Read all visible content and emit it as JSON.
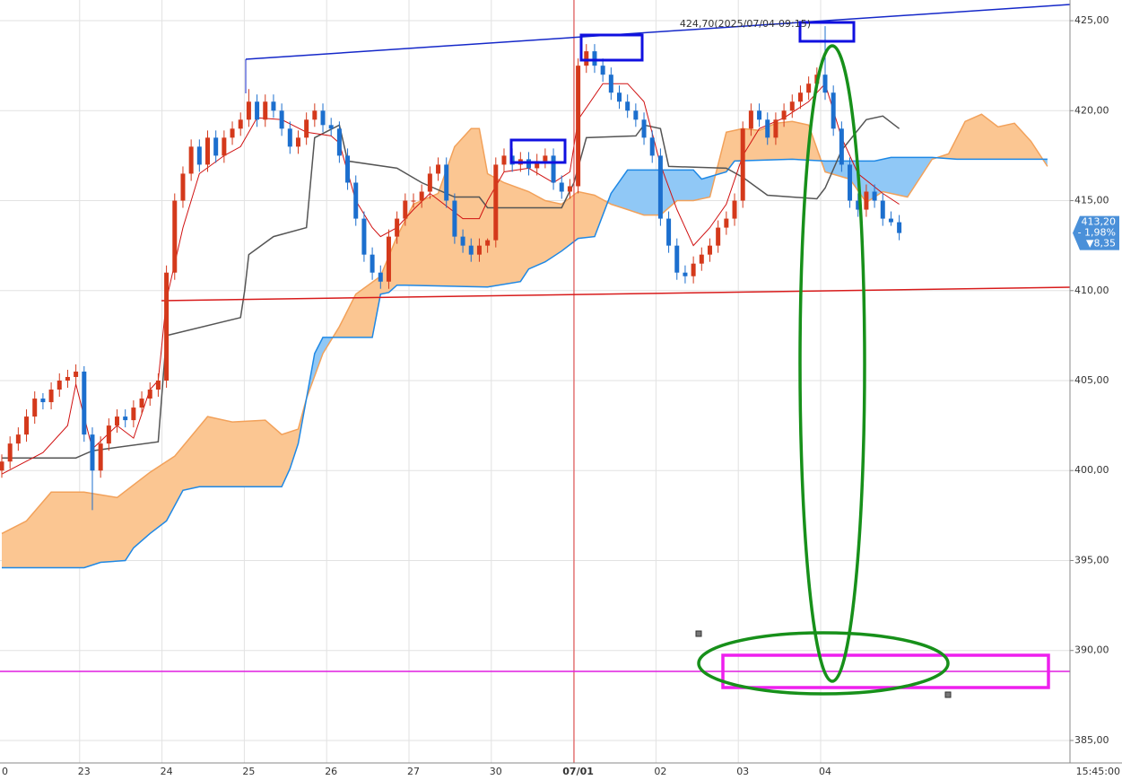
{
  "chart_data": {
    "type": "candlestick",
    "up_color": "#d4391b",
    "down_color": "#1c6fce",
    "categories": [
      "0",
      null,
      null,
      null,
      null,
      null,
      null,
      null,
      null,
      null,
      "23",
      null,
      null,
      null,
      null,
      null,
      null,
      null,
      null,
      null,
      "24",
      null,
      null,
      null,
      null,
      null,
      null,
      null,
      null,
      null,
      "25",
      null,
      null,
      null,
      null,
      null,
      null,
      null,
      null,
      null,
      "26",
      null,
      null,
      null,
      null,
      null,
      null,
      null,
      null,
      null,
      "27",
      null,
      null,
      null,
      null,
      null,
      null,
      null,
      null,
      null,
      "30",
      null,
      null,
      null,
      null,
      null,
      null,
      null,
      null,
      null,
      "07/01",
      null,
      null,
      null,
      null,
      null,
      null,
      null,
      null,
      null,
      "02",
      null,
      null,
      null,
      null,
      null,
      null,
      null,
      null,
      null,
      "03",
      null,
      null,
      null,
      null,
      null,
      null,
      null,
      null,
      null,
      "04",
      null,
      null,
      null,
      null,
      null,
      null,
      null,
      null,
      null
    ],
    "open": [
      400,
      400.5,
      401.5,
      402,
      403,
      404,
      403.8,
      404.5,
      405,
      405.2,
      405.5,
      402,
      400,
      401.5,
      402.5,
      403,
      402.8,
      403.5,
      404,
      404.5,
      405,
      411,
      415,
      416.5,
      418,
      417,
      418.5,
      417.5,
      418.5,
      419,
      419.5,
      420.5,
      419.5,
      420.5,
      420,
      419,
      418,
      418.5,
      419.5,
      420,
      419.2,
      419,
      417.5,
      416,
      414,
      412,
      411,
      410.5,
      413,
      414,
      415,
      415,
      415.5,
      416.5,
      417,
      415,
      413,
      412.5,
      412,
      412.5,
      412.8,
      417,
      417.5,
      417,
      417.3,
      416.8,
      417.2,
      417.5,
      416,
      415.5,
      415.8,
      422.5,
      423.3,
      422.5,
      422,
      421,
      420.5,
      420,
      419.5,
      418.5,
      417.5,
      414,
      412.5,
      411,
      410.8,
      411.5,
      412,
      412.5,
      413.5,
      414,
      415,
      419,
      420,
      419.5,
      418.5,
      419.5,
      420,
      420.5,
      421,
      421.5,
      422,
      421,
      419,
      417,
      415,
      414.5,
      415.5,
      415,
      414,
      413.8
    ],
    "high": [
      400.9,
      401.9,
      402.4,
      403.4,
      404.4,
      404.3,
      404.9,
      405.4,
      405.6,
      405.9,
      405.8,
      402.4,
      401.9,
      402.9,
      403.4,
      403.4,
      403.9,
      404.4,
      404.9,
      405.4,
      411.4,
      415.4,
      416.9,
      418.4,
      418.4,
      418.9,
      418.9,
      418.9,
      419.4,
      419.9,
      421.2,
      420.9,
      420.9,
      420.9,
      420.4,
      419.4,
      418.9,
      419.9,
      420.4,
      420.4,
      419.6,
      419.4,
      417.9,
      416.4,
      414.4,
      412.4,
      411.4,
      413.4,
      414.4,
      415.4,
      415.4,
      415.9,
      416.9,
      417.4,
      417.4,
      415.4,
      413.4,
      412.9,
      412.9,
      412.9,
      417.4,
      417.9,
      417.9,
      417.7,
      417.7,
      417.6,
      417.9,
      417.9,
      416.4,
      416.2,
      422.9,
      423.7,
      423.7,
      422.9,
      422.4,
      421.4,
      420.9,
      420.4,
      419.9,
      418.9,
      417.9,
      414.4,
      412.9,
      411.4,
      411.9,
      412.4,
      412.9,
      413.9,
      414.4,
      415.4,
      419.4,
      420.4,
      420.4,
      419.9,
      419.9,
      420.4,
      420.9,
      421.4,
      421.9,
      422.4,
      424.7,
      421.4,
      419.4,
      417.4,
      415.4,
      415.9,
      415.9,
      415.4,
      414.4,
      414.2
    ],
    "low": [
      399.6,
      400.1,
      401.1,
      401.6,
      402.6,
      403.4,
      403.4,
      404.1,
      404.6,
      404.8,
      401.6,
      397.8,
      399.6,
      401.1,
      402.1,
      402.4,
      402.4,
      403.1,
      403.6,
      404.1,
      404.6,
      410.6,
      414.6,
      416.1,
      416.6,
      416.6,
      417.1,
      417.1,
      418.1,
      418.6,
      419.1,
      419.1,
      419.1,
      419.6,
      418.6,
      417.6,
      417.6,
      418.1,
      419.1,
      418.8,
      418.6,
      417.1,
      415.6,
      413.6,
      411.6,
      410.6,
      410.1,
      410.1,
      412.6,
      413.6,
      414.6,
      414.6,
      415.1,
      416.1,
      414.6,
      412.6,
      412.1,
      411.6,
      411.6,
      412.1,
      412.4,
      416.6,
      416.6,
      416.6,
      416.4,
      416.4,
      416.8,
      415.6,
      415.1,
      415.1,
      415.4,
      422.1,
      422.1,
      421.6,
      420.6,
      420.1,
      419.6,
      419.1,
      418.1,
      417.1,
      413.6,
      412.1,
      410.6,
      410.4,
      410.4,
      411.1,
      411.6,
      412.1,
      413.1,
      413.6,
      414.6,
      418.6,
      419.1,
      418.1,
      418.1,
      419.1,
      419.6,
      420.1,
      420.6,
      421.1,
      420.6,
      418.6,
      416.6,
      414.6,
      414.1,
      414.1,
      414.6,
      413.6,
      413.6,
      412.8
    ],
    "close": [
      400.5,
      401.5,
      402,
      403,
      404,
      403.8,
      404.5,
      405,
      405.2,
      405.5,
      402,
      400,
      401.5,
      402.5,
      403,
      402.8,
      403.5,
      404,
      404.5,
      405,
      411,
      415,
      416.5,
      418,
      417,
      418.5,
      417.5,
      418.5,
      419,
      419.5,
      420.5,
      419.5,
      420.5,
      420,
      419,
      418,
      418.5,
      419.5,
      420,
      419.2,
      419,
      417.5,
      416,
      414,
      412,
      411,
      410.5,
      413,
      414,
      415,
      415,
      415.5,
      416.5,
      417,
      415,
      413,
      412.5,
      412,
      412.5,
      412.8,
      417,
      417.5,
      417,
      417.3,
      416.8,
      417.2,
      417.5,
      416,
      415.5,
      415.8,
      422.5,
      423.3,
      422.5,
      422,
      421,
      420.5,
      420,
      419.5,
      418.5,
      417.5,
      414,
      412.5,
      411,
      410.8,
      411.5,
      412,
      412.5,
      413.5,
      414,
      415,
      419,
      420,
      419.5,
      418.5,
      419.5,
      420,
      420.5,
      421,
      421.5,
      422,
      421,
      419,
      417,
      415,
      414.5,
      415.5,
      415,
      414,
      413.8,
      413.2
    ],
    "kijun": {
      "color": "#555555",
      "x": [
        0,
        9,
        11,
        19,
        20,
        29,
        29.5,
        30,
        33,
        37,
        38,
        41,
        42,
        48,
        51,
        55,
        58,
        59,
        68,
        69.5,
        71,
        77,
        78,
        80,
        81,
        88,
        90,
        93,
        99,
        100,
        102,
        105,
        107,
        109
      ],
      "values": [
        400.7,
        400.7,
        401.1,
        401.6,
        407.5,
        408.5,
        410,
        412,
        413,
        413.5,
        418.5,
        419.2,
        417.2,
        416.8,
        416,
        415.2,
        415.2,
        414.6,
        414.6,
        416,
        418.5,
        418.6,
        419.2,
        419,
        416.9,
        416.8,
        416.3,
        415.3,
        415.1,
        415.7,
        417.8,
        419.5,
        419.7,
        419
      ]
    },
    "tenkan": {
      "color": "#d01010",
      "x": [
        0,
        5,
        8,
        9,
        10,
        11,
        14,
        16,
        18,
        19,
        20,
        22,
        24,
        27,
        29,
        31,
        34,
        37,
        40,
        41,
        43,
        45,
        46,
        48,
        50,
        52,
        54,
        56,
        58,
        59,
        61,
        64,
        67,
        69,
        70,
        73,
        76,
        78,
        80,
        82,
        84,
        86,
        88,
        90,
        92,
        95,
        98,
        100,
        102,
        104,
        107,
        109
      ],
      "values": [
        399.8,
        401,
        402.5,
        404.8,
        403,
        401.2,
        402.5,
        401.8,
        404.5,
        405,
        409.5,
        413.5,
        416.5,
        417.5,
        418,
        419.6,
        419.5,
        418.8,
        418.6,
        418.2,
        415,
        413.5,
        413,
        413.5,
        414.5,
        415.4,
        414.7,
        414,
        414,
        415,
        416.6,
        416.8,
        416,
        416.6,
        419.5,
        421.5,
        421.5,
        420.5,
        417,
        414.5,
        412.5,
        413.5,
        414.8,
        417.5,
        419,
        419.6,
        420.5,
        421.5,
        418.5,
        416.5,
        415.4,
        414.8
      ]
    },
    "span_a": {
      "color": "#f2a15a",
      "fill": "#fbc692",
      "x": [
        0,
        3,
        6,
        10,
        14,
        18,
        21,
        25,
        28,
        32,
        34,
        36,
        37,
        39,
        41,
        43,
        46,
        48,
        50,
        53,
        55,
        57,
        58,
        59,
        61,
        64,
        66,
        68,
        70,
        72,
        74,
        76,
        78,
        80,
        82,
        84,
        86,
        88,
        90,
        92,
        94,
        96,
        98,
        100,
        103,
        105,
        107,
        110,
        113,
        115,
        117,
        119,
        121,
        123,
        125,
        127
      ],
      "values": [
        396.5,
        397.2,
        398.8,
        398.8,
        398.5,
        399.9,
        400.8,
        403,
        402.7,
        402.8,
        402,
        402.3,
        404,
        406.5,
        408,
        409.8,
        410.8,
        413,
        414.8,
        415.4,
        418,
        419,
        419,
        416.5,
        416,
        415.5,
        415,
        414.8,
        415.5,
        415.3,
        414.8,
        414.5,
        414.2,
        414.2,
        415,
        415,
        415.2,
        418.8,
        419,
        418.9,
        419.3,
        419.4,
        419.2,
        416.6,
        416.2,
        414.9,
        415.5,
        415.2,
        417.3,
        417.6,
        419.4,
        419.8,
        419.1,
        419.3,
        418.3,
        416.9
      ]
    },
    "span_b": {
      "color": "#1e88e5",
      "fill": "#90c8f6",
      "x": [
        0,
        10,
        12,
        15,
        16,
        18,
        20,
        22,
        24,
        34,
        35,
        36,
        37,
        38,
        39,
        45,
        46,
        47,
        48,
        49,
        59,
        63,
        64,
        66,
        68,
        70,
        72,
        74,
        76,
        84,
        85,
        88,
        89,
        96,
        100,
        106,
        108,
        113,
        116,
        127
      ],
      "values": [
        394.6,
        394.6,
        394.9,
        395,
        395.7,
        396.5,
        397.2,
        398.9,
        399.1,
        399.1,
        400.1,
        401.5,
        404,
        406.5,
        407.4,
        407.4,
        409.8,
        409.9,
        410.3,
        410.3,
        410.2,
        410.5,
        411.2,
        411.6,
        412.2,
        412.9,
        413,
        415.4,
        416.7,
        416.7,
        416.2,
        416.6,
        417.2,
        417.3,
        417.2,
        417.2,
        417.4,
        417.4,
        417.3,
        417.3
      ]
    },
    "ylim": [
      383.75,
      426.15
    ],
    "yticks": [
      {
        "value": 385,
        "label": "385,00"
      },
      {
        "value": 390,
        "label": "390,00"
      },
      {
        "value": 395,
        "label": "395,00"
      },
      {
        "value": 400,
        "label": "400,00"
      },
      {
        "value": 405,
        "label": "405,00"
      },
      {
        "value": 410,
        "label": "410,00"
      },
      {
        "value": 415,
        "label": "415,00"
      },
      {
        "value": 420,
        "label": "420,00"
      },
      {
        "value": 425,
        "label": "425,00"
      }
    ],
    "grid": true,
    "x_end_label": "15:45:00",
    "high_annotation": {
      "value": 424.7,
      "label": "424,70(2025/07/04-09:15)"
    },
    "last_price": {
      "value": 413.2,
      "label": "413,20",
      "change_pct": "- 1,98%",
      "change": "▼8,35"
    }
  }
}
